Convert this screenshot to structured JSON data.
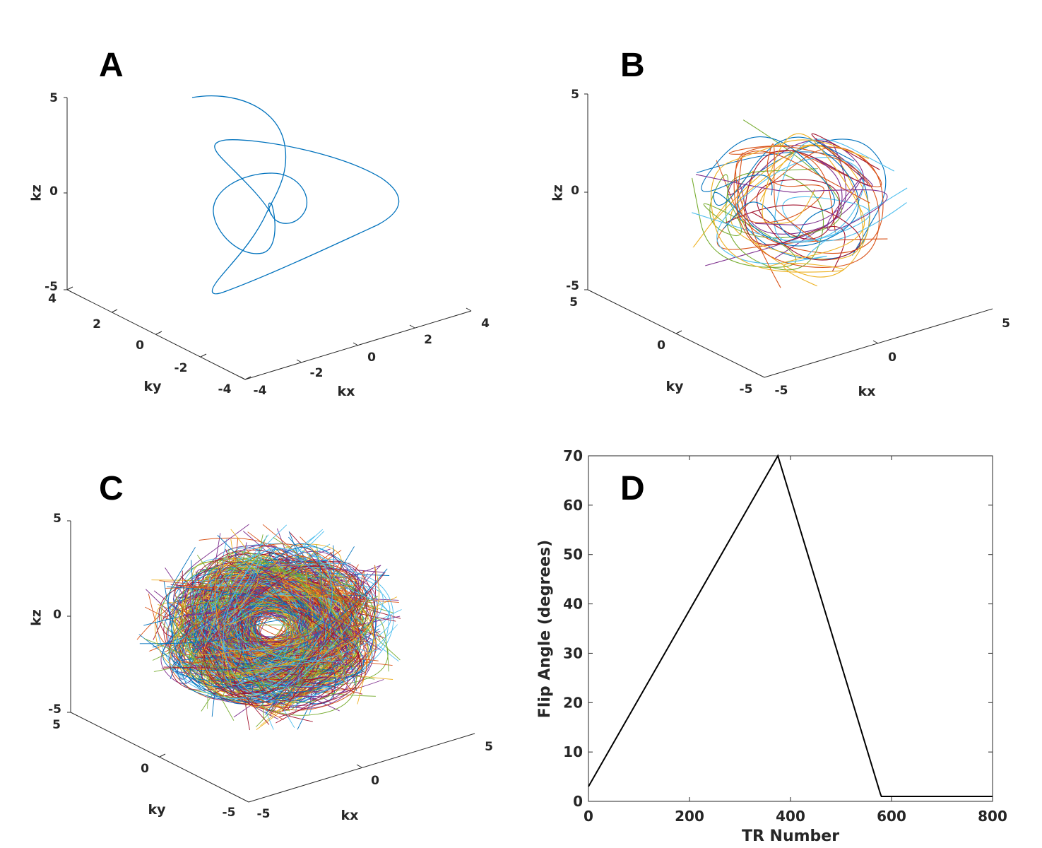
{
  "chart_data": [
    {
      "panel": "A",
      "type": "line3d",
      "xlabel": "kx",
      "ylabel": "ky",
      "zlabel": "kz",
      "xlim": [
        -4,
        4
      ],
      "ylim": [
        -4,
        4
      ],
      "zlim": [
        -5,
        5
      ],
      "xticks": [
        "-4",
        "-2",
        "0",
        "2",
        "4"
      ],
      "yticks": [
        "-4",
        "-2",
        "0",
        "2",
        "4"
      ],
      "zticks": [
        "-5",
        "0",
        "5"
      ],
      "series": [
        {
          "color": "#0072bd"
        }
      ]
    },
    {
      "panel": "B",
      "type": "line3d",
      "xlabel": "kx",
      "ylabel": "ky",
      "zlabel": "kz",
      "xlim": [
        -5,
        5
      ],
      "ylim": [
        -5,
        5
      ],
      "zlim": [
        -5,
        5
      ],
      "xticks": [
        "-5",
        "0",
        "5"
      ],
      "yticks": [
        "-5",
        "0",
        "5"
      ],
      "zticks": [
        "-5",
        "0",
        "5"
      ],
      "series_count": 10
    },
    {
      "panel": "C",
      "type": "line3d",
      "xlabel": "kx",
      "ylabel": "ky",
      "zlabel": "kz",
      "xlim": [
        -5,
        5
      ],
      "ylim": [
        -5,
        5
      ],
      "zlim": [
        -5,
        5
      ],
      "xticks": [
        "-5",
        "0",
        "5"
      ],
      "yticks": [
        "-5",
        "0",
        "5"
      ],
      "zticks": [
        "-5",
        "0",
        "5"
      ],
      "series_count": 300
    },
    {
      "panel": "D",
      "type": "line",
      "xlabel": "TR Number",
      "ylabel": "Flip Angle (degrees)",
      "xlim": [
        0,
        800
      ],
      "ylim": [
        0,
        70
      ],
      "xticks": [
        "0",
        "200",
        "400",
        "600",
        "800"
      ],
      "yticks": [
        "0",
        "10",
        "20",
        "30",
        "40",
        "50",
        "60",
        "70"
      ],
      "x": [
        0,
        375,
        578,
        580,
        800
      ],
      "y": [
        3,
        70,
        1.5,
        1,
        1
      ],
      "color": "#000000"
    }
  ],
  "palette": [
    "#0072bd",
    "#d95319",
    "#edb120",
    "#7e2f8e",
    "#77ac30",
    "#4dbeee",
    "#a2142f"
  ]
}
